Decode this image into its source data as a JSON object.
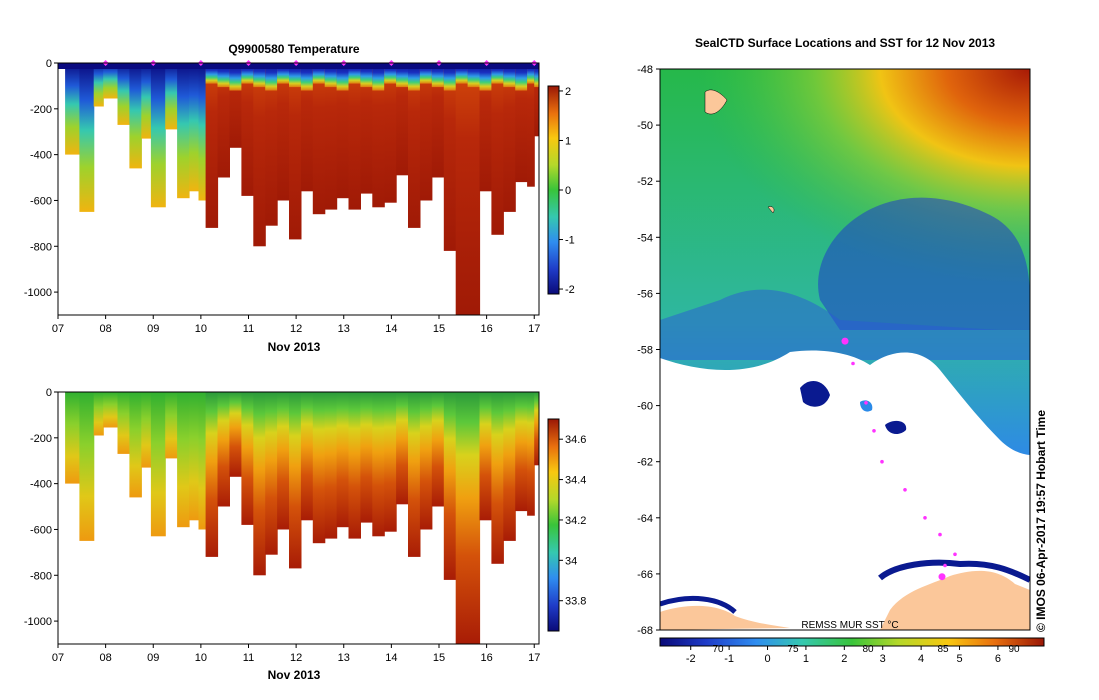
{
  "chart_data": [
    {
      "type": "heatmap",
      "title": "Q9900580  Temperature",
      "xlabel": "Nov 2013",
      "ylabel": "",
      "x_tick_labels": [
        "07",
        "08",
        "09",
        "10",
        "11",
        "12",
        "13",
        "14",
        "15",
        "16",
        "17"
      ],
      "y_tick_labels": [
        "0",
        "-200",
        "-400",
        "-600",
        "-800",
        "-1000"
      ],
      "xlim": [
        7,
        17.1
      ],
      "ylim": [
        -1100,
        0
      ],
      "colorbar": {
        "min": -2.1,
        "max": 2.1,
        "ticks": [
          "2",
          "1",
          "0",
          "-1",
          "-2"
        ]
      },
      "profiles_day": [
        7.15,
        7.45,
        7.75,
        7.95,
        8.25,
        8.5,
        8.75,
        8.95,
        9.25,
        9.5,
        9.75,
        9.95,
        10.1,
        10.35,
        10.6,
        10.85,
        11.1,
        11.35,
        11.6,
        11.85,
        12.1,
        12.35,
        12.6,
        12.85,
        13.1,
        13.35,
        13.6,
        13.85,
        14.1,
        14.35,
        14.6,
        14.85,
        15.1,
        15.35,
        15.6,
        15.85,
        16.1,
        16.35,
        16.6,
        16.85,
        17.0
      ],
      "profiles_max_depth": [
        400,
        650,
        190,
        155,
        270,
        460,
        330,
        630,
        290,
        590,
        560,
        600,
        720,
        500,
        370,
        580,
        800,
        710,
        600,
        770,
        560,
        660,
        640,
        590,
        640,
        570,
        630,
        610,
        490,
        720,
        600,
        500,
        820,
        1100,
        1110,
        560,
        750,
        650,
        520,
        540,
        320
      ],
      "surface_markers_day": [
        8,
        9,
        10,
        11,
        12,
        13,
        14,
        15,
        16,
        17
      ]
    },
    {
      "type": "heatmap",
      "title": "",
      "xlabel": "Nov 2013",
      "ylabel": "",
      "x_tick_labels": [
        "07",
        "08",
        "09",
        "10",
        "11",
        "12",
        "13",
        "14",
        "15",
        "16",
        "17"
      ],
      "y_tick_labels": [
        "0",
        "-200",
        "-400",
        "-600",
        "-800",
        "-1000"
      ],
      "xlim": [
        7,
        17.1
      ],
      "ylim": [
        -1100,
        0
      ],
      "colorbar": {
        "min": 33.65,
        "max": 34.7,
        "ticks": [
          "34.6",
          "34.4",
          "34.2",
          "34",
          "33.8"
        ]
      },
      "profiles_day": [
        7.15,
        7.45,
        7.75,
        7.95,
        8.25,
        8.5,
        8.75,
        8.95,
        9.25,
        9.5,
        9.75,
        9.95,
        10.1,
        10.35,
        10.6,
        10.85,
        11.1,
        11.35,
        11.6,
        11.85,
        12.1,
        12.35,
        12.6,
        12.85,
        13.1,
        13.35,
        13.6,
        13.85,
        14.1,
        14.35,
        14.6,
        14.85,
        15.1,
        15.35,
        15.6,
        15.85,
        16.1,
        16.35,
        16.6,
        16.85,
        17.0
      ],
      "profiles_max_depth": [
        400,
        650,
        190,
        155,
        270,
        460,
        330,
        630,
        290,
        590,
        560,
        600,
        720,
        500,
        370,
        580,
        800,
        710,
        600,
        770,
        560,
        660,
        640,
        590,
        640,
        570,
        630,
        610,
        490,
        720,
        600,
        500,
        820,
        1100,
        1110,
        560,
        750,
        650,
        520,
        540,
        320
      ]
    },
    {
      "type": "heatmap",
      "title": "SealCTD Surface Locations and SST for 12 Nov 2013",
      "xlabel": "",
      "ylabel": "",
      "y_tick_labels": [
        "-48",
        "-50",
        "-52",
        "-54",
        "-56",
        "-58",
        "-60",
        "-62",
        "-64",
        "-66",
        "-68"
      ],
      "ylim": [
        -68,
        -48
      ],
      "colorbar": {
        "min": -2.8,
        "max": 7.2,
        "ticks": [
          "-2",
          "-1",
          "0",
          "1",
          "2",
          "3",
          "4",
          "5",
          "6"
        ],
        "upper_ticks": [
          "70",
          "75",
          "80",
          "85",
          "90"
        ],
        "label": "REMSS MUR SST °C"
      },
      "track_points": [
        [
          -57.7,
          -57.7
        ],
        [
          -58.5,
          -58.5
        ],
        [
          -59.9,
          -59.9
        ],
        [
          -60.9,
          -60.9
        ],
        [
          -62.0,
          -62.0
        ],
        [
          -63.0,
          -63.0
        ],
        [
          -64.0,
          -64.0
        ],
        [
          -64.6,
          -64.6
        ],
        [
          -65.3,
          -65.3
        ],
        [
          -65.7,
          -65.7
        ],
        [
          -66.1,
          -66.1
        ]
      ],
      "side_text": "© IMOS 06-Apr-2017 19:57 Hobart Time"
    }
  ]
}
